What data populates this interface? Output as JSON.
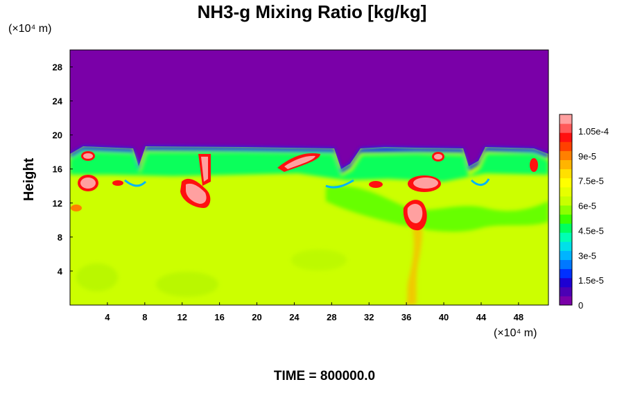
{
  "chart_data": {
    "type": "heatmap",
    "title": "NH3-g Mixing Ratio [kg/kg]",
    "ylabel": "Height",
    "x_unit": "(×10⁴ m)",
    "y_unit": "(×10⁴ m)",
    "x_ticks": [
      4,
      8,
      12,
      16,
      20,
      24,
      28,
      32,
      36,
      40,
      44,
      48
    ],
    "y_ticks": [
      4,
      8,
      12,
      16,
      20,
      24,
      28
    ],
    "xlim": [
      0,
      51.2
    ],
    "ylim": [
      0,
      30
    ],
    "colorbar": {
      "labels": [
        "0",
        "1.5e-5",
        "3e-5",
        "4.5e-5",
        "6e-5",
        "7.5e-5",
        "9e-5",
        "1.05e-4"
      ],
      "label_values": [
        0,
        1.5e-05,
        3e-05,
        4.5e-05,
        6e-05,
        7.5e-05,
        9e-05,
        0.000105
      ],
      "range": [
        0,
        0.000115
      ],
      "colors": [
        "#7a00a8",
        "#4b00b4",
        "#1e00d2",
        "#0030ff",
        "#0078ff",
        "#00b4ff",
        "#00e0e8",
        "#00ffb4",
        "#00ff60",
        "#3cff00",
        "#8cff00",
        "#c8ff00",
        "#e6ff00",
        "#ffff00",
        "#ffe000",
        "#ffb400",
        "#ff8000",
        "#ff4000",
        "#ff1010",
        "#ff5a5a",
        "#ffa0a0"
      ]
    },
    "background_value_top": 0,
    "background_value_bottom": 7.5e-05
  },
  "time_label": "TIME = 800000.0"
}
